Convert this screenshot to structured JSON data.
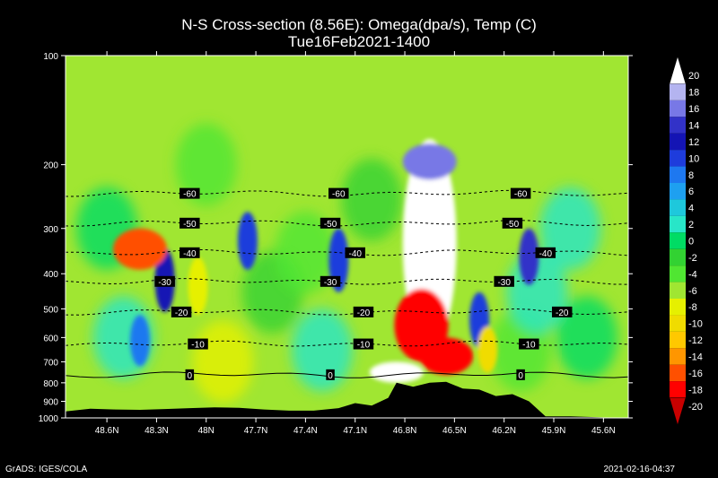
{
  "title": "N-S Cross-section (8.56E): Omega(dpa/s), Temp (C)",
  "subtitle": "Tue16Feb2021-1400",
  "footer_left": "GrADS: IGES/COLA",
  "footer_right": "2021-02-16-04:37",
  "chart_data": {
    "type": "heatmap",
    "title": "N-S Cross-section (8.56E): Omega(dpa/s), Temp (C)",
    "subtitle": "Tue16Feb2021-1400",
    "x_ticks": [
      "48.6N",
      "48.3N",
      "48N",
      "47.7N",
      "47.4N",
      "47.1N",
      "46.8N",
      "46.5N",
      "46.2N",
      "45.9N",
      "45.6N"
    ],
    "x_range": [
      48.85,
      45.45
    ],
    "y_ticks": [
      100,
      200,
      300,
      400,
      500,
      600,
      700,
      800,
      900,
      1000
    ],
    "y_range": [
      100,
      1000
    ],
    "y_scale": "log",
    "y_unit": "hPa",
    "colorbar": {
      "levels": [
        20,
        18,
        16,
        14,
        12,
        10,
        8,
        6,
        4,
        2,
        0,
        -2,
        -4,
        -6,
        -8,
        -10,
        -12,
        -14,
        -16,
        -18,
        -20
      ],
      "colors": [
        "#ffffff",
        "#b4b4f0",
        "#7878e6",
        "#3232c8",
        "#1414b4",
        "#1e3cdc",
        "#1e78f0",
        "#1ea0f0",
        "#1ec8dc",
        "#28e6c8",
        "#00dc64",
        "#32d232",
        "#50e632",
        "#a0e632",
        "#e6f000",
        "#f0dc00",
        "#ffc800",
        "#ff9600",
        "#ff5000",
        "#ff0000",
        "#c80000"
      ]
    },
    "temperature_contours": [
      {
        "label": "-60",
        "p": 240,
        "label_lats": [
          48.1,
          47.2,
          46.1
        ]
      },
      {
        "label": "-50",
        "p": 290,
        "label_lats": [
          48.1,
          47.25,
          46.15
        ]
      },
      {
        "label": "-40",
        "p": 350,
        "label_lats": [
          48.1,
          47.1,
          45.95
        ]
      },
      {
        "label": "-30",
        "p": 420,
        "label_lats": [
          48.25,
          47.25,
          46.2
        ]
      },
      {
        "label": "-20",
        "p": 510,
        "label_lats": [
          48.15,
          47.05,
          45.85
        ]
      },
      {
        "label": "-10",
        "p": 625,
        "label_lats": [
          48.05,
          47.05,
          46.05
        ]
      },
      {
        "label": "0",
        "p": 760,
        "label_lats": [
          48.1,
          47.25,
          46.1
        ]
      }
    ],
    "omega_features": [
      {
        "lat": 46.65,
        "p_top": 170,
        "p_bot": 640,
        "value": 20
      },
      {
        "lat": 46.65,
        "p_top": 175,
        "p_bot": 220,
        "value": 16
      },
      {
        "lat": 46.7,
        "p_top": 440,
        "p_bot": 700,
        "value": -18
      },
      {
        "lat": 46.55,
        "p_top": 600,
        "p_bot": 760,
        "value": -18
      },
      {
        "lat": 46.85,
        "p_top": 700,
        "p_bot": 800,
        "value": 20
      },
      {
        "lat": 46.05,
        "p_top": 300,
        "p_bot": 430,
        "value": 14
      },
      {
        "lat": 48.25,
        "p_top": 340,
        "p_bot": 510,
        "value": 12
      },
      {
        "lat": 48.4,
        "p_top": 300,
        "p_bot": 390,
        "value": -16
      },
      {
        "lat": 47.75,
        "p_top": 270,
        "p_bot": 390,
        "value": 10
      },
      {
        "lat": 47.2,
        "p_top": 300,
        "p_bot": 450,
        "value": 10
      },
      {
        "lat": 46.35,
        "p_top": 450,
        "p_bot": 640,
        "value": 10
      },
      {
        "lat": 48.4,
        "p_top": 520,
        "p_bot": 720,
        "value": 8
      },
      {
        "lat": 48.05,
        "p_top": 360,
        "p_bot": 520,
        "value": -8
      },
      {
        "lat": 46.3,
        "p_top": 560,
        "p_bot": 750,
        "value": -10
      }
    ],
    "terrain": [
      [
        48.85,
        960
      ],
      [
        48.7,
        943
      ],
      [
        48.55,
        948
      ],
      [
        48.4,
        950
      ],
      [
        48.25,
        945
      ],
      [
        48.1,
        940
      ],
      [
        47.95,
        935
      ],
      [
        47.8,
        938
      ],
      [
        47.65,
        948
      ],
      [
        47.5,
        955
      ],
      [
        47.35,
        955
      ],
      [
        47.2,
        940
      ],
      [
        47.1,
        910
      ],
      [
        47.0,
        925
      ],
      [
        46.9,
        880
      ],
      [
        46.85,
        800
      ],
      [
        46.75,
        820
      ],
      [
        46.65,
        800
      ],
      [
        46.55,
        795
      ],
      [
        46.45,
        830
      ],
      [
        46.35,
        835
      ],
      [
        46.25,
        870
      ],
      [
        46.15,
        860
      ],
      [
        46.05,
        900
      ],
      [
        45.95,
        990
      ],
      [
        45.8,
        990
      ],
      [
        45.65,
        995
      ],
      [
        45.5,
        1000
      ],
      [
        45.45,
        1000
      ]
    ]
  }
}
